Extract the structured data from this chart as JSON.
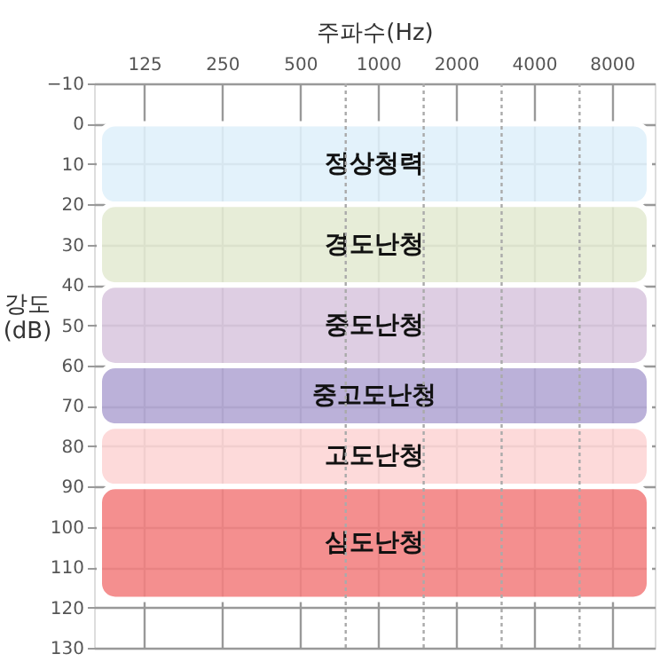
{
  "chart_data": {
    "type": "line",
    "xlabel": "주파수(Hz)",
    "ylabel": "강도\n(dB)",
    "log": "x",
    "xlim": [
      80,
      11700
    ],
    "xticks": [
      125,
      250,
      500,
      1000,
      2000,
      4000,
      8000
    ],
    "ylim": [
      130,
      -10
    ],
    "yticks": [
      -10,
      0,
      10,
      20,
      30,
      40,
      50,
      60,
      70,
      80,
      90,
      100,
      110,
      120,
      130
    ],
    "grid": true,
    "ref_lines": [
      {
        "axis": "x",
        "value": 750,
        "line_style": "dotted",
        "color": "#aaaaaa"
      },
      {
        "axis": "x",
        "value": 1500,
        "line_style": "dotted",
        "color": "#aaaaaa"
      },
      {
        "axis": "x",
        "value": 3000,
        "line_style": "dotted",
        "color": "#aaaaaa"
      },
      {
        "axis": "x",
        "value": 6000,
        "line_style": "dotted",
        "color": "#aaaaaa"
      }
    ],
    "bands": [
      {
        "axis": "y",
        "from": 0,
        "to": 20,
        "label": "정상청력",
        "color": "#dff0fa"
      },
      {
        "axis": "y",
        "from": 20,
        "to": 40,
        "label": "경도난청",
        "color": "#e4ead3"
      },
      {
        "axis": "y",
        "from": 40,
        "to": 60,
        "label": "중도난청",
        "color": "#d9c7df"
      },
      {
        "axis": "y",
        "from": 60,
        "to": 75,
        "label": "중고도난청",
        "color": "#b2a6d4"
      },
      {
        "axis": "y",
        "from": 75,
        "to": 90,
        "label": "고도난청",
        "color": "#fdd5d5"
      },
      {
        "axis": "y",
        "from": 90,
        "to": 118,
        "label": "심도난청",
        "color": "#f2807f"
      }
    ]
  }
}
